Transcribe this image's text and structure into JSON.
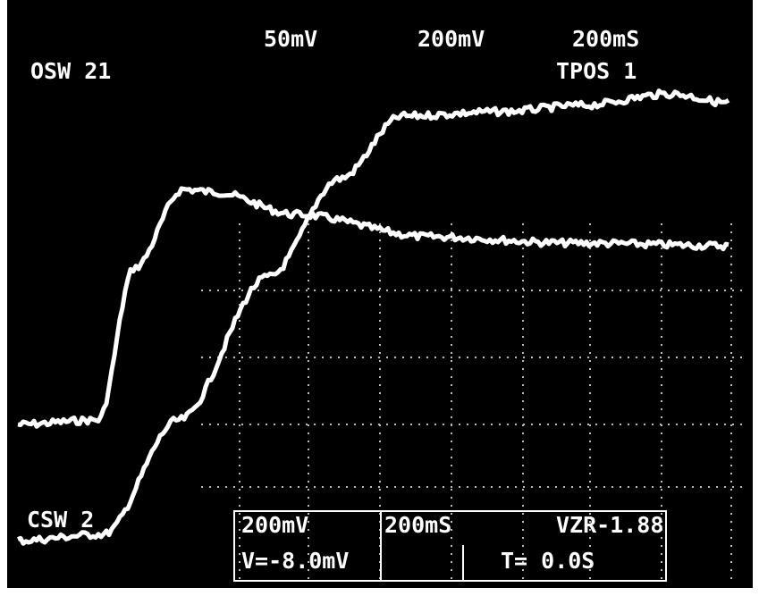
{
  "header": {
    "ch1_scale": "50mV",
    "ch2_scale": "200mV",
    "time_scale": "200mS"
  },
  "labels": {
    "top_left": "OSW 21",
    "top_right": "TPOS 1",
    "bottom_left": "CSW 2"
  },
  "readout": {
    "row1": [
      "200mV",
      "200mS",
      "VZR-1.88"
    ],
    "row2": [
      "V=-8.0mV",
      "T= 0.0S"
    ]
  }
}
